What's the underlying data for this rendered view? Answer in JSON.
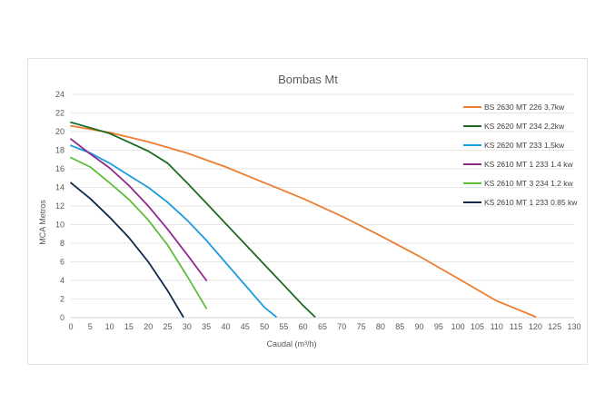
{
  "chart_data": {
    "type": "line",
    "title": "Bombas Mt",
    "xlabel": "Caudal (m³/h)",
    "ylabel": "MCA Metros",
    "xlim": [
      0,
      130
    ],
    "ylim": [
      0,
      24
    ],
    "xticks": [
      0,
      5,
      10,
      15,
      20,
      25,
      30,
      35,
      40,
      45,
      50,
      55,
      60,
      65,
      70,
      75,
      80,
      85,
      90,
      95,
      100,
      105,
      110,
      115,
      120,
      125,
      130
    ],
    "yticks": [
      0,
      2,
      4,
      6,
      8,
      10,
      12,
      14,
      16,
      18,
      20,
      22,
      24
    ],
    "grid": true,
    "legend_position": "top-right",
    "series": [
      {
        "name": "BS 2630 MT 226 3,7kw",
        "color": "#ed7d31",
        "x": [
          0,
          10,
          20,
          30,
          40,
          50,
          60,
          70,
          80,
          90,
          100,
          110,
          120
        ],
        "y": [
          20.6,
          19.9,
          18.9,
          17.7,
          16.2,
          14.5,
          12.8,
          10.9,
          8.8,
          6.6,
          4.2,
          1.8,
          -0.6
        ]
      },
      {
        "name": "KS 2620 MT 234 2,2kw",
        "color": "#1e6b24",
        "x": [
          0,
          10,
          20,
          25,
          30,
          35,
          40,
          45,
          50,
          55,
          60,
          63
        ],
        "y": [
          21,
          19.8,
          17.9,
          16.6,
          14.5,
          12.3,
          10.1,
          7.9,
          5.7,
          3.5,
          1.3,
          0
        ]
      },
      {
        "name": "KS 2620 MT 233 1,5kw",
        "color": "#1f9bde",
        "x": [
          0,
          5,
          10,
          15,
          20,
          25,
          30,
          35,
          40,
          45,
          50,
          53
        ],
        "y": [
          18.5,
          17.7,
          16.6,
          15.3,
          14,
          12.4,
          10.5,
          8.3,
          5.9,
          3.5,
          1.1,
          -0.4
        ]
      },
      {
        "name": "KS 2610 MT 1 233 1.4 kw",
        "color": "#8e2b8e",
        "x": [
          0,
          5,
          10,
          15,
          20,
          25,
          30,
          35
        ],
        "y": [
          19.2,
          17.6,
          16.1,
          14.2,
          12,
          9.5,
          6.8,
          4
        ]
      },
      {
        "name": "KS 2610 MT 3 234 1.2 kw",
        "color": "#5fbd3c",
        "x": [
          0,
          5,
          10,
          15,
          20,
          25,
          30,
          35
        ],
        "y": [
          17.2,
          16.2,
          14.5,
          12.7,
          10.5,
          7.8,
          4.5,
          1
        ]
      },
      {
        "name": "KS 2610 MT 1 233 0.85 kw",
        "color": "#0f2a4a",
        "x": [
          0,
          5,
          10,
          15,
          20,
          25,
          29
        ],
        "y": [
          14.5,
          12.8,
          10.8,
          8.6,
          6,
          2.9,
          0
        ]
      }
    ]
  }
}
